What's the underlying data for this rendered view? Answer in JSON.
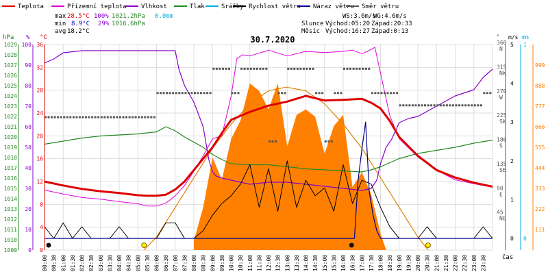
{
  "legend": [
    {
      "label": "Teplota",
      "color": "#dd0000"
    },
    {
      "label": "Přízemní teplota",
      "color": "#dd00dd"
    },
    {
      "label": "Vlhkost",
      "color": "#8800cc"
    },
    {
      "label": "Tlak",
      "color": "#228822"
    },
    {
      "label": "Srážky",
      "color": "#00aadd"
    },
    {
      "label": "Rychlost větru",
      "color": "#000000"
    },
    {
      "label": "Náraz větru",
      "color": "#000088"
    },
    {
      "label": "Směr větru",
      "color": "#555555"
    }
  ],
  "stats": {
    "max_label": "max",
    "max_temp": "28.5°C",
    "max_hum": "100%",
    "max_press": "1021.2hPa",
    "max_rain": "0.0mm",
    "min_label": "min",
    "min_temp": "8.9°C",
    "min_hum": "29%",
    "min_press": "1016.6hPa",
    "avg_label": "avg",
    "avg_temp": "18.2°C"
  },
  "wind_stats": {
    "ws": "WS:3.6m/s",
    "wg": "WG:4.6m/s"
  },
  "sun": {
    "label": "Slunce",
    "rise": "Východ:05:20",
    "set": "Západ:20:33"
  },
  "moon": {
    "label": "Měsíc",
    "rise": "Východ:16:27",
    "set": "Západ:0:13"
  },
  "title": "30.7.2020",
  "axis_units": {
    "hpa": "hPa",
    "pct": "%",
    "temp": "°C",
    "deg": "°",
    "ms": "m/s",
    "mm": "mm",
    "time": "čas"
  },
  "colors": {
    "temp": "#dd0000",
    "ground": "#dd00dd",
    "hum": "#8800cc",
    "press": "#228822",
    "rain": "#00aadd",
    "wind": "#000000",
    "gust": "#000088",
    "dir": "#555555",
    "solar": "#ff8000",
    "sun": "#e08000",
    "grid": "#dddddd"
  },
  "chart_data": {
    "type": "line",
    "title": "30.7.2020",
    "x_unit": "hour of day",
    "x_ticks": [
      "00:00",
      "00:30",
      "01:00",
      "01:30",
      "02:00",
      "02:30",
      "03:00",
      "03:30",
      "04:00",
      "04:30",
      "05:00",
      "05:30",
      "06:00",
      "06:30",
      "07:00",
      "07:30",
      "08:00",
      "08:30",
      "09:00",
      "09:30",
      "10:00",
      "10:30",
      "11:00",
      "11:30",
      "12:00",
      "12:30",
      "13:00",
      "13:30",
      "14:00",
      "14:30",
      "15:00",
      "15:30",
      "16:00",
      "16:30",
      "17:00",
      "17:30",
      "18:00",
      "18:30",
      "19:00",
      "19:30",
      "20:00",
      "20:30",
      "21:00",
      "21:30",
      "22:00",
      "22:30",
      "23:00",
      "23:30"
    ],
    "axes": {
      "pressure_hpa": {
        "min": 1009,
        "max": 1029,
        "ticks": [
          1009,
          1010,
          1011,
          1012,
          1013,
          1014,
          1015,
          1016,
          1017,
          1018,
          1019,
          1020,
          1021,
          1022,
          1023,
          1024,
          1025,
          1026,
          1027,
          1028,
          1029
        ]
      },
      "humidity_pct": {
        "min": 0,
        "max": 100,
        "ticks": [
          0,
          10,
          20,
          30,
          40,
          50,
          60,
          70,
          80,
          90,
          100
        ]
      },
      "temperature_c": {
        "min": 0,
        "max": 36,
        "ticks": [
          0,
          4,
          8,
          12,
          16,
          20,
          24,
          28,
          32,
          36
        ]
      },
      "wind_dir_deg": {
        "ticks": [
          {
            "v": 45,
            "l": "NE"
          },
          {
            "v": 90,
            "l": "E"
          },
          {
            "v": 135,
            "l": "SE"
          },
          {
            "v": 180,
            "l": "S"
          },
          {
            "v": 225,
            "l": "SW"
          },
          {
            "v": 270,
            "l": "W"
          },
          {
            "v": 315,
            "l": "NW"
          },
          {
            "v": 360,
            "l": "N"
          }
        ]
      },
      "wind_ms": {
        "min": 0,
        "max": 5,
        "ticks": [
          0,
          1,
          2,
          3,
          4,
          5
        ]
      },
      "rain_mm": {
        "min": 0,
        "max": 1,
        "ticks": [
          0,
          1
        ]
      },
      "solar": {
        "min": 0,
        "max": 1110,
        "ticks": [
          111,
          222,
          333,
          444,
          555,
          666,
          777,
          888,
          999
        ]
      }
    },
    "series": [
      {
        "name": "Teplota",
        "axis": "temperature_c",
        "x": [
          0,
          1,
          2,
          3,
          4,
          5,
          5.5,
          6,
          6.5,
          7,
          7.5,
          8,
          8.5,
          9,
          9.5,
          10,
          11,
          12,
          13,
          14,
          15,
          16,
          17,
          17.5,
          18,
          18.5,
          19,
          20,
          21,
          22,
          23,
          24
        ],
        "y": [
          12,
          11.3,
          10.7,
          10.3,
          10,
          9.6,
          9.5,
          9.5,
          9.7,
          10.6,
          12,
          14,
          16,
          18,
          20.5,
          22.8,
          24.2,
          25.3,
          26,
          27,
          26.2,
          26.3,
          26.5,
          25.8,
          24.8,
          22.6,
          19.8,
          16.5,
          14,
          12.7,
          11.8,
          11.1
        ]
      },
      {
        "name": "Přízemní teplota",
        "axis": "temperature_c",
        "x": [
          0,
          1,
          2,
          3,
          4,
          5,
          5.5,
          6,
          6.5,
          7,
          7.5,
          8,
          8.5,
          9,
          9.5,
          10,
          10.3,
          10.6,
          11,
          12,
          13,
          14,
          15,
          16,
          16.5,
          17,
          17.3,
          17.7,
          18,
          18.5,
          19,
          20,
          21,
          22,
          23,
          24
        ],
        "y": [
          10.5,
          9.8,
          9.2,
          8.9,
          8.5,
          8.1,
          7.7,
          7.7,
          8.2,
          9.5,
          11.3,
          13.8,
          16.5,
          19.5,
          20,
          27,
          33.5,
          34.2,
          34,
          35,
          34,
          34.8,
          34.6,
          34.8,
          35,
          34.4,
          34.8,
          35.5,
          31,
          23.5,
          19.5,
          16.3,
          14,
          12.3,
          11.6,
          11
        ]
      },
      {
        "name": "Vlhkost",
        "axis": "humidity_pct",
        "x": [
          0,
          0.5,
          1,
          2,
          3,
          4,
          5,
          6,
          6.5,
          7,
          7.2,
          7.5,
          8,
          8.5,
          8.8,
          9,
          9.2,
          9.5,
          10,
          11,
          12,
          13,
          14,
          15,
          16,
          17,
          17.5,
          17.8,
          18,
          18.3,
          18.6,
          19,
          19.5,
          20,
          21,
          22,
          23,
          23.5,
          24
        ],
        "y": [
          91,
          93,
          96,
          97,
          97,
          97,
          97,
          97,
          97,
          97,
          88,
          80,
          72,
          60,
          44,
          38,
          36,
          35,
          34,
          32,
          33,
          33,
          32,
          31,
          30,
          29,
          30,
          34,
          42,
          50,
          54,
          62,
          64,
          65,
          70,
          75,
          78,
          84,
          88
        ]
      },
      {
        "name": "Tlak",
        "axis": "pressure_hpa",
        "x": [
          0,
          1,
          2,
          3,
          4,
          5,
          6,
          6.5,
          7,
          7.5,
          8,
          8.5,
          9,
          9.5,
          10,
          11,
          12,
          13,
          14,
          15,
          16,
          17,
          17.5,
          18,
          18.5,
          19,
          20,
          21,
          22,
          23,
          24
        ],
        "y": [
          1019.3,
          1019.6,
          1019.9,
          1020.1,
          1020.2,
          1020.3,
          1020.5,
          1021.0,
          1020.6,
          1020,
          1019.5,
          1019,
          1018.3,
          1017.8,
          1017.4,
          1017.3,
          1017.3,
          1017.1,
          1016.9,
          1016.8,
          1016.7,
          1016.6,
          1016.8,
          1017.1,
          1017.5,
          1017.9,
          1018.4,
          1018.7,
          1019,
          1019.4,
          1019.7
        ]
      },
      {
        "name": "Směr větru",
        "axis": "wind_dir_deg",
        "style": "dots",
        "x": [
          0,
          0.5,
          1,
          1.5,
          2,
          2.5,
          3,
          3.5,
          4,
          4.5,
          5,
          5.5,
          6,
          6.5,
          7,
          7.5,
          8,
          8.5,
          9,
          9.5,
          10,
          10.5,
          11,
          11.5,
          12,
          12.5,
          13,
          13.5,
          14,
          14.5,
          15,
          15.5,
          16,
          16.5,
          17,
          17.5,
          18,
          18.5,
          19,
          19.5,
          20,
          20.5,
          21,
          21.5,
          22,
          22.5,
          23,
          23.5
        ],
        "y": [
          225,
          225,
          225,
          225,
          225,
          225,
          225,
          225,
          225,
          225,
          225,
          225,
          270,
          270,
          270,
          270,
          270,
          270,
          315,
          315,
          270,
          315,
          315,
          315,
          180,
          270,
          315,
          315,
          315,
          270,
          180,
          270,
          315,
          315,
          315,
          270,
          270,
          270,
          247,
          247,
          247,
          247,
          247,
          247,
          247,
          247,
          247,
          270
        ]
      },
      {
        "name": "Rychlost větru",
        "axis": "wind_ms",
        "x": [
          0,
          0.5,
          1,
          1.5,
          2,
          2.5,
          3,
          3.5,
          4,
          4.5,
          5,
          5.5,
          6,
          6.5,
          7,
          7.5,
          8,
          8.5,
          9,
          9.5,
          10,
          10.5,
          11,
          11.5,
          12,
          12.5,
          13,
          13.5,
          14,
          14.5,
          15,
          15.5,
          16,
          16.5,
          17,
          17.5,
          18,
          18.5,
          19,
          19.5,
          20,
          20.5,
          21,
          21.5,
          22,
          22.5,
          23,
          23.5,
          24
        ],
        "y": [
          0.3,
          0,
          0.4,
          0,
          0.3,
          0,
          0,
          0,
          0.3,
          0,
          0,
          0,
          0,
          0.4,
          0.4,
          0,
          0,
          0.2,
          0.6,
          0.9,
          1.1,
          1.4,
          1.9,
          0.8,
          1.8,
          0.7,
          2.0,
          0.8,
          1.5,
          1.1,
          1.3,
          0.7,
          1.9,
          0.9,
          1.5,
          1.4,
          0.8,
          0.3,
          0,
          0,
          0,
          0.3,
          0,
          0,
          0,
          0,
          0,
          0.3,
          0
        ]
      },
      {
        "name": "Náraz větru",
        "axis": "wind_ms",
        "x": [
          0,
          16.6,
          16.8,
          17,
          17.2,
          17.4,
          17.6,
          17.8,
          18,
          24
        ],
        "y": [
          0,
          0,
          1.5,
          2.3,
          3.0,
          1.2,
          0.6,
          0.2,
          0,
          0
        ]
      },
      {
        "name": "Solar",
        "axis": "solar",
        "style": "area",
        "x": [
          8.0,
          8.5,
          9,
          9.5,
          10,
          10.5,
          11,
          11.5,
          12,
          12.5,
          13,
          13.5,
          14,
          14.5,
          15,
          15.5,
          16,
          16.5,
          17,
          17.5,
          18,
          18.3
        ],
        "y": [
          50,
          230,
          500,
          380,
          600,
          700,
          900,
          860,
          760,
          900,
          560,
          730,
          760,
          720,
          520,
          670,
          730,
          340,
          420,
          300,
          90,
          0
        ]
      },
      {
        "name": "Sun elevation",
        "axis": "solar",
        "style": "curve",
        "x": [
          5.33,
          6,
          7,
          8,
          9,
          10,
          11,
          12,
          12.95,
          14,
          15,
          16,
          17,
          18,
          19,
          20,
          20.55
        ],
        "y": [
          0,
          70,
          230,
          390,
          550,
          680,
          790,
          860,
          880,
          860,
          790,
          680,
          550,
          390,
          230,
          70,
          0
        ]
      }
    ],
    "grid": true,
    "legend_position": "top"
  }
}
